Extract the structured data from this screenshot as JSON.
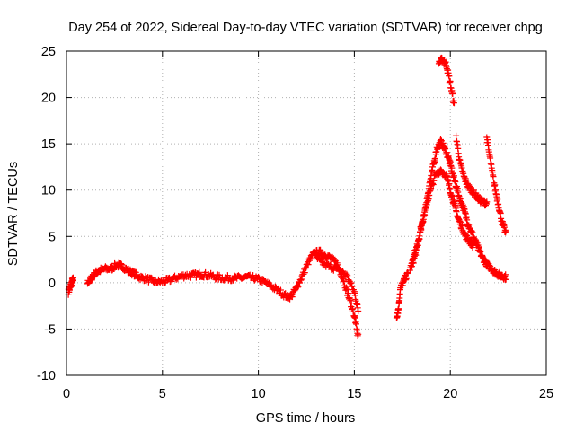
{
  "chart_data": {
    "type": "scatter",
    "title": "Day 254 of 2022, Sidereal Day-to-day VTEC variation (SDTVAR) for receiver chpg",
    "xlabel": "GPS time / hours",
    "ylabel": "SDTVAR / TECUs",
    "xlim": [
      0,
      25
    ],
    "ylim": [
      -10,
      25
    ],
    "xticks": [
      0,
      5,
      10,
      15,
      20,
      25
    ],
    "yticks": [
      -10,
      -5,
      0,
      5,
      10,
      15,
      20,
      25
    ],
    "xtick_labels": [
      "0",
      "5",
      "10",
      "15",
      "20",
      "25"
    ],
    "ytick_labels": [
      "-10",
      "-5",
      "0",
      "5",
      "10",
      "15",
      "20",
      "25"
    ],
    "grid": true,
    "marker": "+",
    "series": [
      {
        "name": "SDTVAR",
        "color": "#ff0000",
        "segments": [
          [
            [
              0.1,
              -1.0
            ],
            [
              0.2,
              -0.5
            ],
            [
              0.3,
              0.2
            ],
            [
              0.35,
              0.3
            ]
          ],
          [
            [
              1.1,
              0.0
            ],
            [
              1.3,
              0.5
            ],
            [
              1.5,
              1.0
            ],
            [
              1.7,
              1.3
            ],
            [
              2.0,
              1.5
            ],
            [
              2.3,
              1.5
            ],
            [
              2.6,
              1.9
            ],
            [
              2.9,
              1.8
            ],
            [
              3.2,
              1.3
            ],
            [
              3.5,
              1.0
            ],
            [
              3.8,
              0.6
            ],
            [
              4.2,
              0.4
            ],
            [
              4.6,
              0.1
            ],
            [
              5.0,
              0.1
            ],
            [
              5.4,
              0.3
            ],
            [
              5.8,
              0.6
            ],
            [
              6.2,
              0.8
            ],
            [
              6.6,
              0.8
            ],
            [
              7.0,
              0.9
            ],
            [
              7.4,
              0.8
            ],
            [
              7.8,
              0.6
            ],
            [
              8.2,
              0.5
            ],
            [
              8.6,
              0.5
            ],
            [
              9.0,
              0.5
            ],
            [
              9.4,
              0.6
            ],
            [
              9.8,
              0.5
            ],
            [
              10.2,
              0.2
            ],
            [
              10.6,
              -0.3
            ],
            [
              11.0,
              -0.8
            ],
            [
              11.4,
              -1.4
            ],
            [
              11.7,
              -1.5
            ],
            [
              12.0,
              -0.5
            ],
            [
              12.3,
              0.8
            ],
            [
              12.6,
              2.2
            ],
            [
              12.9,
              3.2
            ],
            [
              13.2,
              3.3
            ],
            [
              13.5,
              3.0
            ],
            [
              13.8,
              2.6
            ],
            [
              14.1,
              2.0
            ],
            [
              14.4,
              0.5
            ],
            [
              14.7,
              -1.5
            ],
            [
              15.0,
              -3.5
            ],
            [
              15.2,
              -5.8
            ]
          ],
          [
            [
              13.0,
              2.7
            ],
            [
              13.4,
              2.0
            ],
            [
              13.8,
              1.7
            ],
            [
              14.2,
              1.4
            ],
            [
              14.6,
              0.8
            ],
            [
              15.0,
              -1.0
            ],
            [
              15.2,
              -3.0
            ]
          ],
          [
            [
              17.2,
              -3.7
            ],
            [
              17.3,
              -2.8
            ],
            [
              17.4,
              -0.6
            ],
            [
              17.6,
              0.3
            ],
            [
              17.8,
              1.0
            ]
          ],
          [
            [
              17.9,
              1.5
            ],
            [
              18.1,
              2.5
            ],
            [
              18.3,
              4.0
            ],
            [
              18.5,
              6.0
            ],
            [
              18.7,
              8.0
            ],
            [
              18.9,
              10.5
            ],
            [
              19.1,
              12.5
            ],
            [
              19.3,
              14.5
            ],
            [
              19.5,
              15.2
            ],
            [
              19.7,
              14.5
            ],
            [
              19.9,
              13.5
            ],
            [
              20.1,
              12.0
            ],
            [
              20.3,
              10.5
            ],
            [
              20.5,
              9.0
            ],
            [
              20.7,
              8.0
            ],
            [
              20.9,
              6.5
            ],
            [
              21.1,
              5.5
            ],
            [
              21.3,
              4.5
            ],
            [
              21.5,
              3.5
            ],
            [
              21.7,
              2.6
            ],
            [
              21.9,
              2.0
            ],
            [
              22.1,
              1.6
            ],
            [
              22.3,
              1.2
            ],
            [
              22.5,
              0.9
            ],
            [
              22.7,
              0.7
            ],
            [
              22.9,
              0.6
            ]
          ],
          [
            [
              18.0,
              2.0
            ],
            [
              18.3,
              4.5
            ],
            [
              18.6,
              7.0
            ],
            [
              18.9,
              9.5
            ],
            [
              19.2,
              11.5
            ],
            [
              19.5,
              12.2
            ],
            [
              19.8,
              11.5
            ],
            [
              20.0,
              10.0
            ],
            [
              20.2,
              8.5
            ],
            [
              20.4,
              7.0
            ],
            [
              20.6,
              6.0
            ],
            [
              20.8,
              5.0
            ],
            [
              21.0,
              4.5
            ],
            [
              21.2,
              4.0
            ]
          ],
          [
            [
              19.4,
              23.8
            ],
            [
              19.6,
              24.1
            ],
            [
              19.8,
              23.5
            ],
            [
              20.0,
              21.5
            ],
            [
              20.2,
              19.2
            ]
          ],
          [
            [
              20.3,
              15.8
            ],
            [
              20.5,
              13.0
            ],
            [
              20.7,
              11.5
            ],
            [
              20.9,
              10.5
            ],
            [
              21.1,
              10.0
            ],
            [
              21.3,
              9.5
            ],
            [
              21.5,
              9.0
            ],
            [
              21.7,
              8.7
            ],
            [
              21.9,
              8.6
            ]
          ],
          [
            [
              21.9,
              15.7
            ],
            [
              22.1,
              13.0
            ],
            [
              22.3,
              10.5
            ],
            [
              22.5,
              8.5
            ],
            [
              22.7,
              6.5
            ],
            [
              22.9,
              5.3
            ]
          ]
        ]
      }
    ]
  }
}
